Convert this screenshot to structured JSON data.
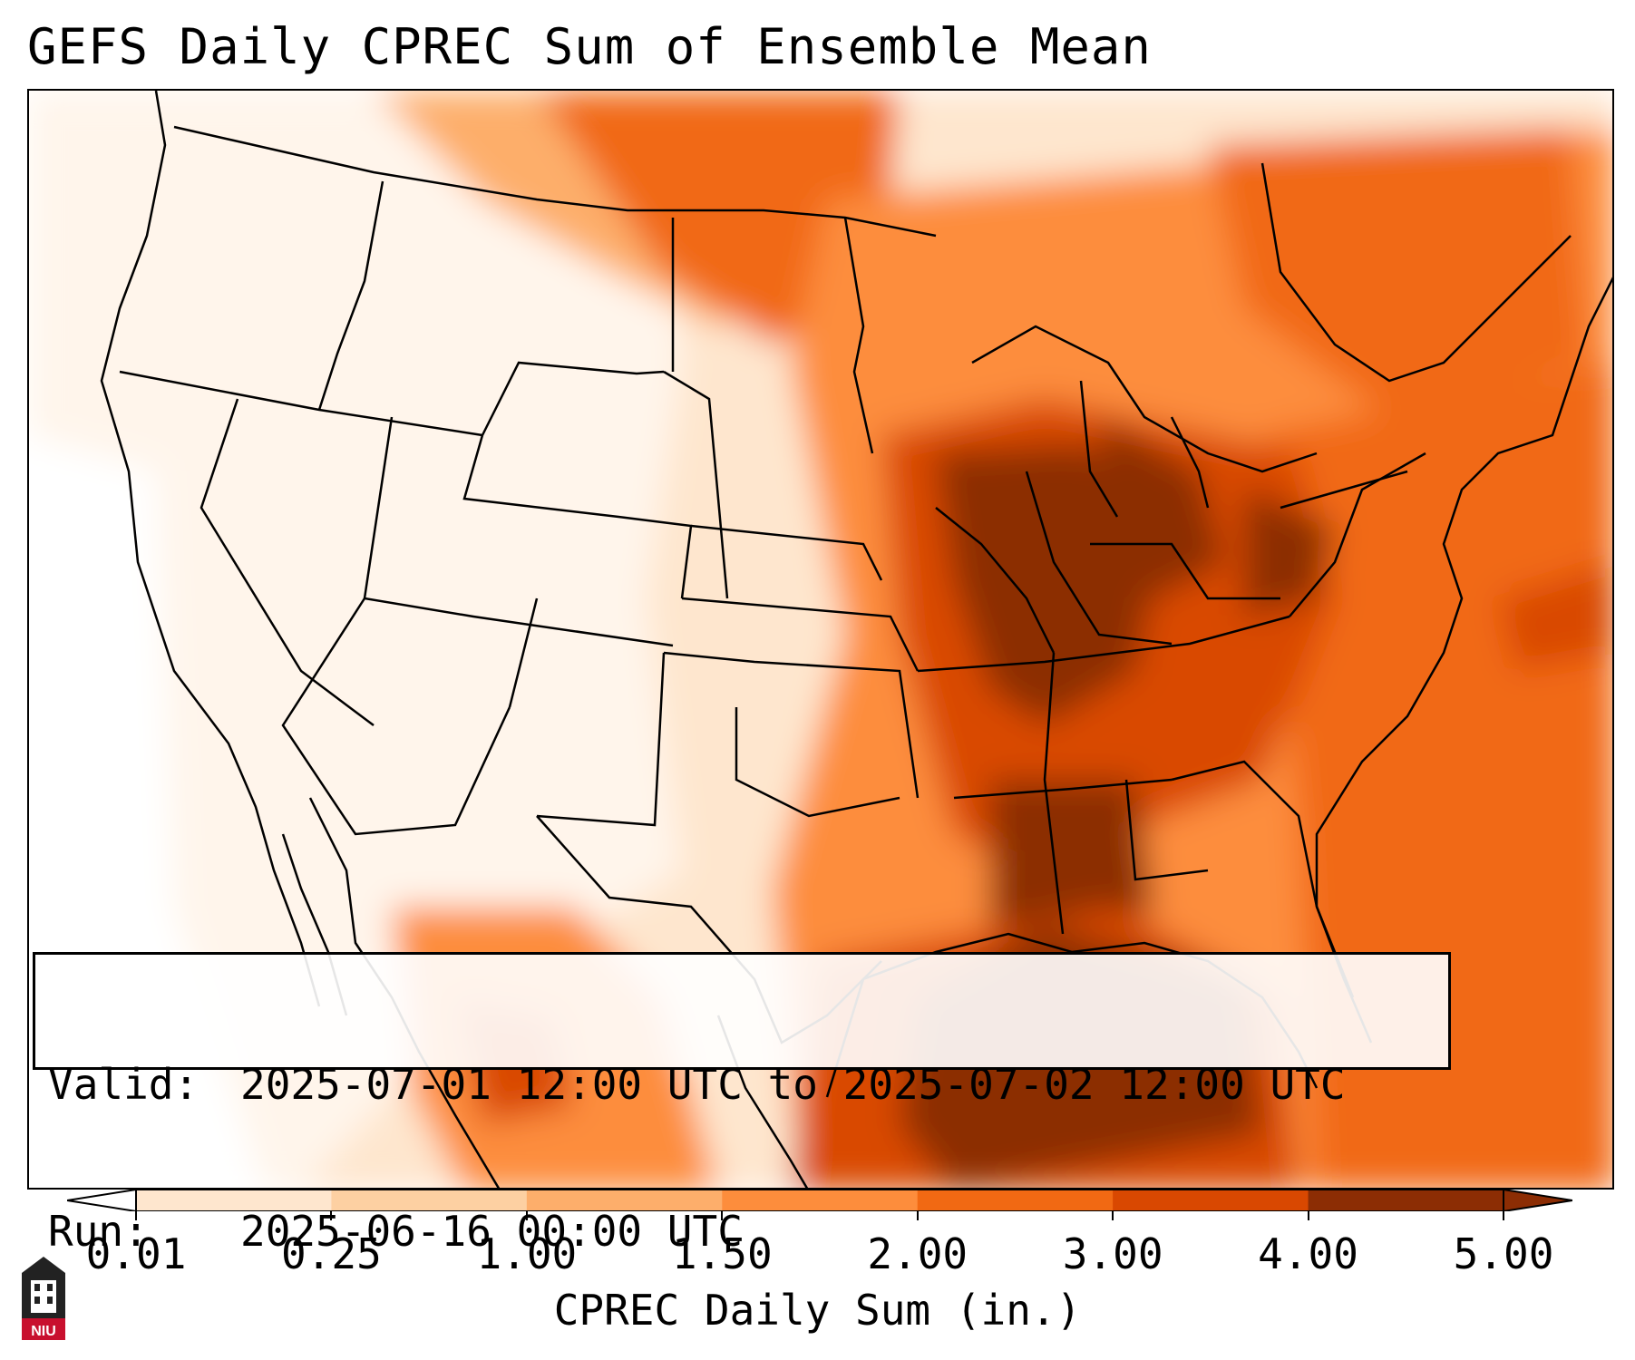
{
  "title": "GEFS Daily CPREC Sum of Ensemble Mean",
  "info": {
    "valid_key": "Valid:",
    "valid_value": "2025-07-01 12:00 UTC to 2025-07-02 12:00 UTC",
    "run_key": "Run:",
    "run_value": "2025-06-16 00:00 UTC"
  },
  "colorbar": {
    "label": "CPREC Daily Sum (in.)",
    "ticks": [
      "0.01",
      "0.25",
      "1.00",
      "1.50",
      "2.00",
      "3.00",
      "4.00",
      "5.00"
    ],
    "colors": [
      "#fff5eb",
      "#fee6ce",
      "#fdd0a2",
      "#fdae6b",
      "#fd8d3c",
      "#f16913",
      "#d94801",
      "#8c2d04"
    ]
  },
  "logo": {
    "text": "NIU",
    "color": "#c8102e"
  },
  "icons": {
    "logo": "niu-logo-icon"
  }
}
